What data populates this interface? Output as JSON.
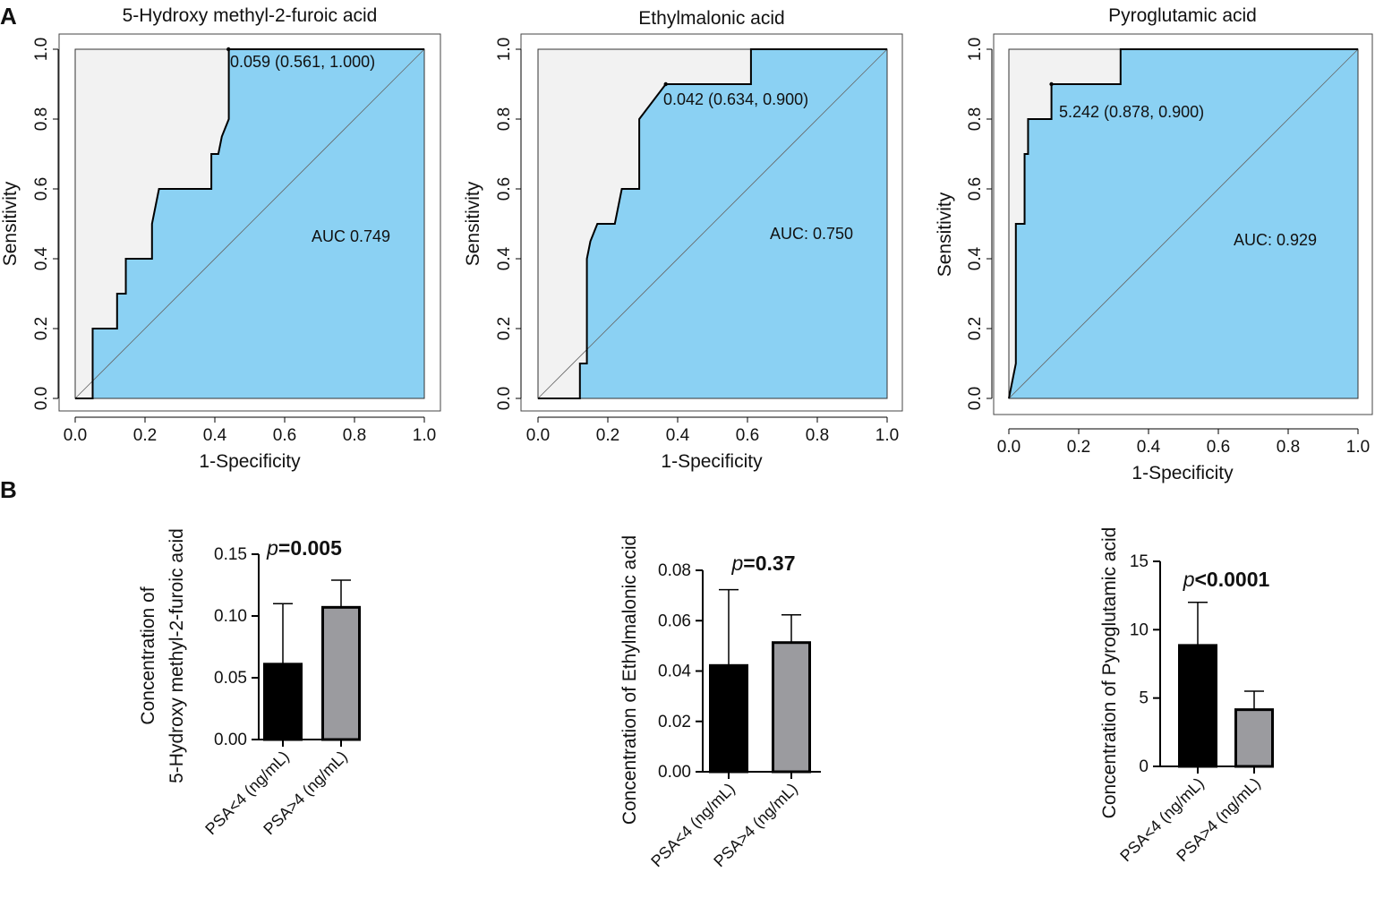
{
  "panels": {
    "a": "A",
    "b": "B"
  },
  "colors": {
    "roc_fill": "#8bd1f3",
    "roc_bg": "#f2f2f2",
    "bar_low": "#000000",
    "bar_high": "#9b9b9f"
  },
  "chart_data": [
    {
      "type": "line",
      "subtype": "roc",
      "title": "5-Hydroxy methyl-2-furoic acid",
      "xlabel": "1-Specificity",
      "ylabel": "Sensitivity",
      "xlim": [
        0,
        1
      ],
      "ylim": [
        0,
        1
      ],
      "ticks": [
        "0.0",
        "0.2",
        "0.4",
        "0.6",
        "0.8",
        "1.0"
      ],
      "x": [
        0.0,
        0.05,
        0.05,
        0.12,
        0.12,
        0.145,
        0.145,
        0.22,
        0.22,
        0.24,
        0.39,
        0.39,
        0.41,
        0.42,
        0.44,
        0.44,
        1.0
      ],
      "y": [
        0.0,
        0.0,
        0.2,
        0.2,
        0.3,
        0.3,
        0.4,
        0.4,
        0.5,
        0.6,
        0.6,
        0.7,
        0.7,
        0.75,
        0.8,
        1.0,
        1.0
      ],
      "cutoff_point": [
        0.439,
        1.0
      ],
      "cutoff_label": "0.059 (0.561, 1.000)",
      "auc_label": "AUC 0.749"
    },
    {
      "type": "line",
      "subtype": "roc",
      "title": "Ethylmalonic acid",
      "xlabel": "1-Specificity",
      "ylabel": "Sensitivity",
      "xlim": [
        0,
        1
      ],
      "ylim": [
        0,
        1
      ],
      "ticks": [
        "0.0",
        "0.2",
        "0.4",
        "0.6",
        "0.8",
        "1.0"
      ],
      "x": [
        0.0,
        0.12,
        0.12,
        0.14,
        0.14,
        0.15,
        0.17,
        0.22,
        0.24,
        0.26,
        0.26,
        0.29,
        0.29,
        0.366,
        0.61,
        0.61,
        1.0
      ],
      "y": [
        0.0,
        0.0,
        0.1,
        0.1,
        0.4,
        0.45,
        0.5,
        0.5,
        0.6,
        0.6,
        0.6,
        0.6,
        0.8,
        0.9,
        0.9,
        1.0,
        1.0
      ],
      "cutoff_point": [
        0.366,
        0.9
      ],
      "cutoff_label": "0.042 (0.634, 0.900)",
      "auc_label": "AUC: 0.750"
    },
    {
      "type": "line",
      "subtype": "roc",
      "title": "Pyroglutamic acid",
      "xlabel": "1-Specificity",
      "ylabel": "Sensitivity",
      "xlim": [
        0,
        1
      ],
      "ylim": [
        0,
        1
      ],
      "ticks": [
        "0.0",
        "0.2",
        "0.4",
        "0.6",
        "0.8",
        "1.0"
      ],
      "x": [
        0.0,
        0.02,
        0.02,
        0.045,
        0.045,
        0.055,
        0.055,
        0.07,
        0.07,
        0.122,
        0.122,
        0.32,
        0.32,
        1.0
      ],
      "y": [
        0.0,
        0.1,
        0.5,
        0.5,
        0.7,
        0.7,
        0.8,
        0.8,
        0.8,
        0.8,
        0.9,
        0.9,
        1.0,
        1.0
      ],
      "cutoff_point": [
        0.122,
        0.9
      ],
      "cutoff_label": "5.242 (0.878, 0.900)",
      "auc_label": "AUC: 0.929"
    },
    {
      "type": "bar",
      "categories": [
        "PSA<4 (ng/mL)",
        "PSA>4 (ng/mL)"
      ],
      "values": [
        0.061,
        0.107
      ],
      "errors": [
        0.049,
        0.022
      ],
      "ylim": [
        0,
        0.15
      ],
      "yticks": [
        "0.00",
        "0.05",
        "0.10",
        "0.15"
      ],
      "ylabel_lines": [
        "Concentration of",
        "5-Hydroxy methyl-2-furoic acid"
      ],
      "p_italic": "p",
      "p_text": "=0.005"
    },
    {
      "type": "bar",
      "categories": [
        "PSA<4 (ng/mL)",
        "PSA>4 (ng/mL)"
      ],
      "values": [
        0.0422,
        0.0513
      ],
      "errors": [
        0.0301,
        0.011
      ],
      "ylim": [
        0,
        0.08
      ],
      "yticks": [
        "0.00",
        "0.02",
        "0.04",
        "0.06",
        "0.08"
      ],
      "ylabel_lines": [
        "Concentration of Ethylmalonic acid"
      ],
      "p_italic": "p",
      "p_text": "=0.37"
    },
    {
      "type": "bar",
      "categories": [
        "PSA<4 (ng/mL)",
        "PSA>4 (ng/mL)"
      ],
      "values": [
        8.85,
        4.15
      ],
      "errors": [
        3.15,
        1.35
      ],
      "ylim": [
        0,
        15
      ],
      "yticks": [
        "0",
        "5",
        "10",
        "15"
      ],
      "ylabel_lines": [
        "Concentration of Pyroglutamic acid"
      ],
      "p_italic": "p",
      "p_text": "<0.0001"
    }
  ]
}
